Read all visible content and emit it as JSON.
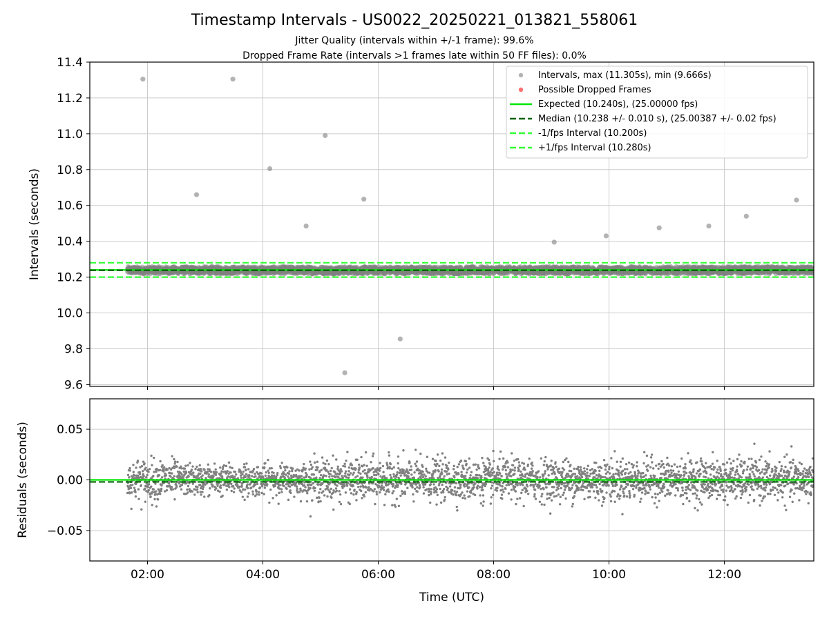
{
  "figure": {
    "title": "Timestamp Intervals - US0022_20250221_013821_558061",
    "subtitle_line1": "Jitter Quality (intervals within +/-1 frame): 99.6%",
    "subtitle_line2": "Dropped Frame Rate (intervals >1 frames late within 50 FF files): 0.0%"
  },
  "colors": {
    "intervals": "#808080",
    "dropped": "#ff4d4d",
    "expected": "#00e600",
    "median": "#006400",
    "fps_interval": "#33ff33",
    "grid": "#cccccc"
  },
  "chart_data": [
    {
      "type": "scatter",
      "ylabel": "Intervals (seconds)",
      "ylim": [
        9.59,
        11.4
      ],
      "y_ticks": [
        9.6,
        9.8,
        10.0,
        10.2,
        10.4,
        10.6,
        10.8,
        11.0,
        11.2,
        11.4
      ],
      "y_tick_labels": [
        "9.6",
        "9.8",
        "10.0",
        "10.2",
        "10.4",
        "10.6",
        "10.8",
        "11.0",
        "11.2",
        "11.4"
      ],
      "x_range_hours": [
        1.0,
        13.55
      ],
      "x_ticks_hours": [
        2,
        4,
        6,
        8,
        10,
        12
      ],
      "grid": true,
      "legend_position": "top-right",
      "series": [
        {
          "name": "Intervals, max (11.305s), min (9.666s)",
          "kind": "points",
          "band_start_hour": 1.65,
          "band_end_hour": 13.55,
          "band_center": 10.238,
          "band_halfwidth": 0.02,
          "outliers": [
            {
              "x": 1.92,
              "y": 11.305
            },
            {
              "x": 2.85,
              "y": 10.66
            },
            {
              "x": 3.48,
              "y": 11.305
            },
            {
              "x": 4.12,
              "y": 10.805
            },
            {
              "x": 4.75,
              "y": 10.485
            },
            {
              "x": 5.08,
              "y": 10.99
            },
            {
              "x": 5.75,
              "y": 10.635
            },
            {
              "x": 6.38,
              "y": 9.855
            },
            {
              "x": 5.42,
              "y": 9.666
            },
            {
              "x": 9.05,
              "y": 10.395
            },
            {
              "x": 9.95,
              "y": 10.43
            },
            {
              "x": 10.87,
              "y": 10.475
            },
            {
              "x": 11.73,
              "y": 10.485
            },
            {
              "x": 12.38,
              "y": 10.54
            },
            {
              "x": 13.25,
              "y": 10.63
            }
          ]
        },
        {
          "name": "Possible Dropped Frames",
          "kind": "points",
          "points": []
        },
        {
          "name": "Expected (10.240s), (25.00000 fps)",
          "kind": "hline",
          "y": 10.24,
          "style": "solid"
        },
        {
          "name": "Median (10.238 +/- 0.010 s), (25.00387 +/- 0.02 fps)",
          "kind": "hline",
          "y": 10.238,
          "style": "dashed"
        },
        {
          "name": "-1/fps Interval (10.200s)",
          "kind": "hline",
          "y": 10.2,
          "style": "dashed"
        },
        {
          "name": "+1/fps Interval (10.280s)",
          "kind": "hline",
          "y": 10.28,
          "style": "dashed"
        }
      ]
    },
    {
      "type": "scatter",
      "xlabel": "Time (UTC)",
      "ylabel": "Residuals (seconds)",
      "ylim": [
        -0.08,
        0.08
      ],
      "y_ticks": [
        -0.05,
        0.0,
        0.05
      ],
      "y_tick_labels": [
        "−0.05",
        "0.00",
        "0.05"
      ],
      "x_range_hours": [
        1.0,
        13.55
      ],
      "x_ticks_hours": [
        2,
        4,
        6,
        8,
        10,
        12
      ],
      "x_tick_labels": [
        "02:00",
        "04:00",
        "06:00",
        "08:00",
        "10:00",
        "12:00"
      ],
      "grid": true,
      "series": [
        {
          "kind": "points",
          "band_start_hour": 1.65,
          "band_end_hour": 13.55,
          "std": 0.01,
          "count": 3200
        },
        {
          "kind": "hline",
          "y": 0.0,
          "style": "solid",
          "color_key": "expected"
        },
        {
          "kind": "hline",
          "y": -0.002,
          "style": "dashed",
          "color_key": "median"
        }
      ]
    }
  ]
}
